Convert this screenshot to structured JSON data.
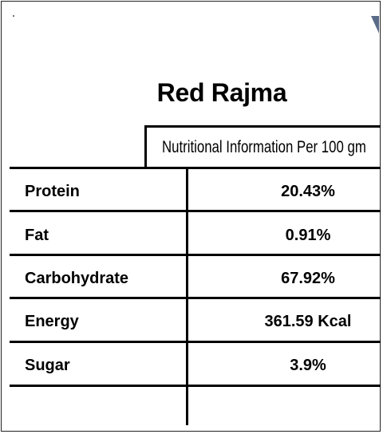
{
  "title": "Red Rajma",
  "header": "Nutritional Information Per 100 gm",
  "rows": [
    {
      "label": "Protein",
      "value": "20.43%"
    },
    {
      "label": "Fat",
      "value": "0.91%"
    },
    {
      "label": "Carbohydrate",
      "value": "67.92%"
    },
    {
      "label": "Energy",
      "value": "361.59 Kcal"
    },
    {
      "label": "Sugar",
      "value": "3.9%"
    }
  ]
}
